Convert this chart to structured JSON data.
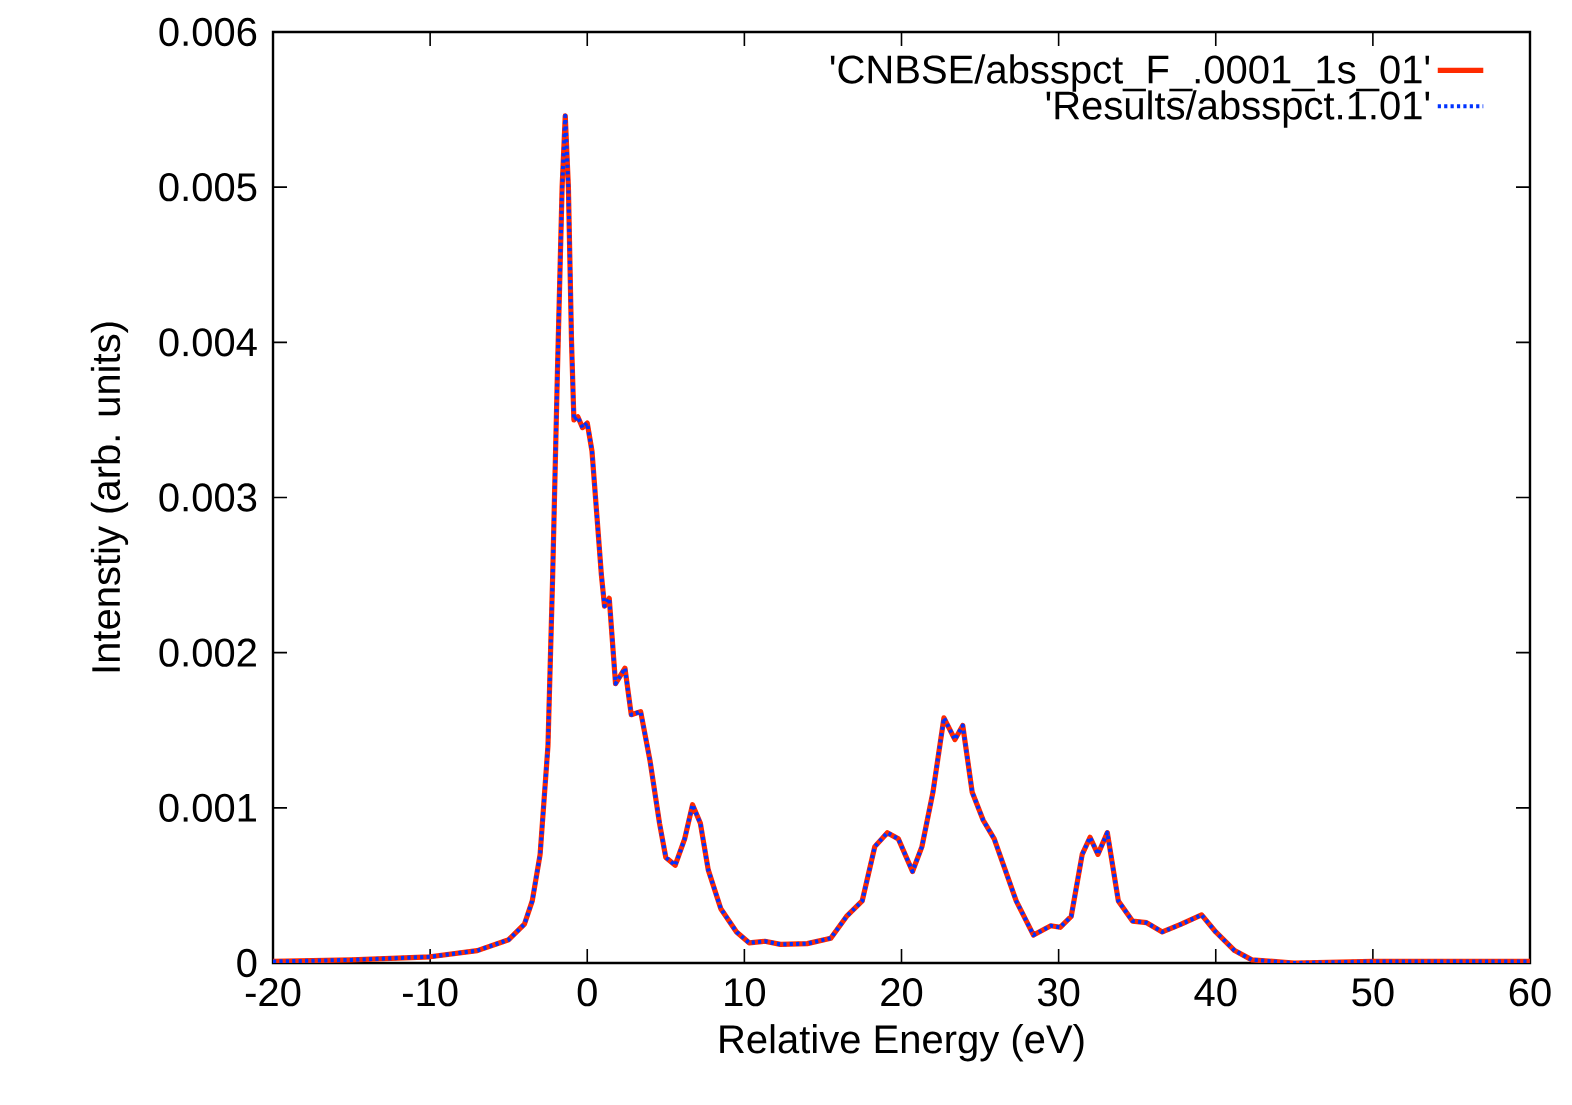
{
  "chart_data": {
    "type": "line",
    "xlabel": "Relative Energy (eV)",
    "ylabel": "Intenstiy (arb. units)",
    "x": [
      -20,
      -15,
      -10,
      -7,
      -5,
      -4,
      -3.5,
      -3,
      -2.5,
      -2.2,
      -1.9,
      -1.6,
      -1.4,
      -1.2,
      -1.0,
      -0.85,
      -0.6,
      -0.3,
      0,
      0.3,
      0.6,
      0.9,
      1.1,
      1.4,
      1.8,
      2.4,
      2.8,
      3.4,
      4.0,
      4.6,
      5.0,
      5.6,
      6.2,
      6.7,
      7.2,
      7.7,
      8.5,
      9.5,
      10.3,
      11.3,
      12.3,
      14,
      15.5,
      16.5,
      17.5,
      18.3,
      19.1,
      19.8,
      20.7,
      21.3,
      22,
      22.7,
      23.4,
      23.9,
      24.5,
      25.2,
      25.9,
      26.6,
      27.3,
      28.4,
      29.5,
      30.1,
      30.8,
      31.5,
      32,
      32.5,
      33.1,
      33.8,
      34.7,
      35.6,
      36.6,
      37.8,
      39.1,
      40,
      41.2,
      42.3,
      45,
      50,
      60
    ],
    "series": [
      {
        "name": "'CNBSE/absspct_F_.0001_1s_01'",
        "color": "#ff2a00",
        "line_style": "solid",
        "values": [
          1e-05,
          2e-05,
          4e-05,
          8e-05,
          0.00015,
          0.00025,
          0.0004,
          0.0007,
          0.0014,
          0.0025,
          0.0038,
          0.005,
          0.00546,
          0.005,
          0.004,
          0.0035,
          0.00352,
          0.00345,
          0.00348,
          0.0033,
          0.0029,
          0.0025,
          0.0023,
          0.00235,
          0.0018,
          0.0019,
          0.0016,
          0.00162,
          0.0013,
          0.0009,
          0.00068,
          0.00063,
          0.0008,
          0.00102,
          0.0009,
          0.0006,
          0.00035,
          0.0002,
          0.00013,
          0.00014,
          0.00012,
          0.000125,
          0.00016,
          0.0003,
          0.0004,
          0.00075,
          0.00084,
          0.0008,
          0.00059,
          0.00075,
          0.0011,
          0.00158,
          0.00144,
          0.00153,
          0.0011,
          0.00092,
          0.0008,
          0.0006,
          0.0004,
          0.00018,
          0.00024,
          0.00023,
          0.0003,
          0.0007,
          0.00081,
          0.0007,
          0.00084,
          0.0004,
          0.00027,
          0.00026,
          0.0002,
          0.00025,
          0.00031,
          0.0002,
          8e-05,
          2e-05,
          0.0,
          1e-05,
          1e-05
        ]
      },
      {
        "name": "'Results/absspct.1.01'",
        "color": "#0033ff",
        "line_style": "dotted",
        "values": [
          1e-05,
          2e-05,
          4e-05,
          8e-05,
          0.00015,
          0.00025,
          0.0004,
          0.0007,
          0.0014,
          0.0025,
          0.0038,
          0.005,
          0.00546,
          0.005,
          0.004,
          0.0035,
          0.00352,
          0.00345,
          0.00348,
          0.0033,
          0.0029,
          0.0025,
          0.0023,
          0.00235,
          0.0018,
          0.0019,
          0.0016,
          0.00162,
          0.0013,
          0.0009,
          0.00068,
          0.00063,
          0.0008,
          0.00102,
          0.0009,
          0.0006,
          0.00035,
          0.0002,
          0.00013,
          0.00014,
          0.00012,
          0.000125,
          0.00016,
          0.0003,
          0.0004,
          0.00075,
          0.00084,
          0.0008,
          0.00059,
          0.00075,
          0.0011,
          0.00158,
          0.00144,
          0.00153,
          0.0011,
          0.00092,
          0.0008,
          0.0006,
          0.0004,
          0.00018,
          0.00024,
          0.00023,
          0.0003,
          0.0007,
          0.00081,
          0.0007,
          0.00084,
          0.0004,
          0.00027,
          0.00026,
          0.0002,
          0.00025,
          0.00031,
          0.0002,
          8e-05,
          2e-05,
          0.0,
          1e-05,
          1e-05
        ]
      }
    ],
    "xlim": [
      -20,
      60
    ],
    "xticks": [
      -20,
      -10,
      0,
      10,
      20,
      30,
      40,
      50,
      60
    ],
    "ylim": [
      0,
      0.006
    ],
    "yticks": [
      0,
      0.001,
      0.002,
      0.003,
      0.004,
      0.005,
      0.006
    ],
    "legend": "top right",
    "marker": "none"
  }
}
